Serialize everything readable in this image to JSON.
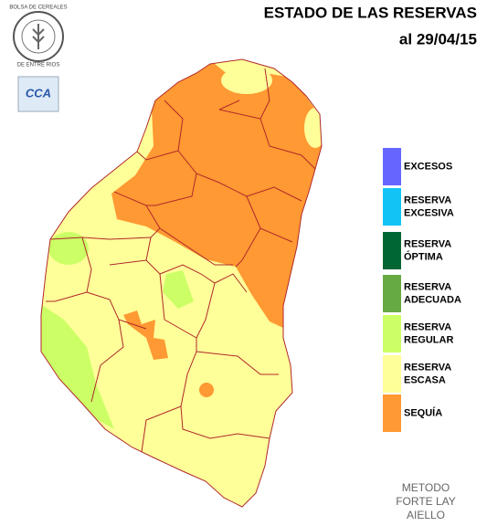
{
  "header": {
    "title": "ESTADO DE LAS RESERVAS",
    "date": "al 29/04/15"
  },
  "logo": {
    "lines": [
      "BOLSA DE CEREALES",
      "DE ENTRE RIOS"
    ]
  },
  "badge": "CCA",
  "legend": [
    {
      "lines": [
        "EXCESOS"
      ],
      "color": "#6666ff"
    },
    {
      "lines": [
        "RESERVA",
        "EXCESIVA"
      ],
      "color": "#11c4f5"
    },
    {
      "lines": [
        "RESERVA",
        "ÓPTIMA"
      ],
      "color": "#006633"
    },
    {
      "lines": [
        "RESERVA",
        "ADECUADA"
      ],
      "color": "#66aa44"
    },
    {
      "lines": [
        "RESERVA",
        "REGULAR"
      ],
      "color": "#ccff66"
    },
    {
      "lines": [
        "RESERVA",
        "ESCASA"
      ],
      "color": "#ffff99"
    },
    {
      "lines": [
        "SEQUÍA"
      ],
      "color": "#ff9933"
    }
  ],
  "method": {
    "lines": [
      "METODO",
      "FORTE LAY",
      "AIELLO"
    ]
  }
}
